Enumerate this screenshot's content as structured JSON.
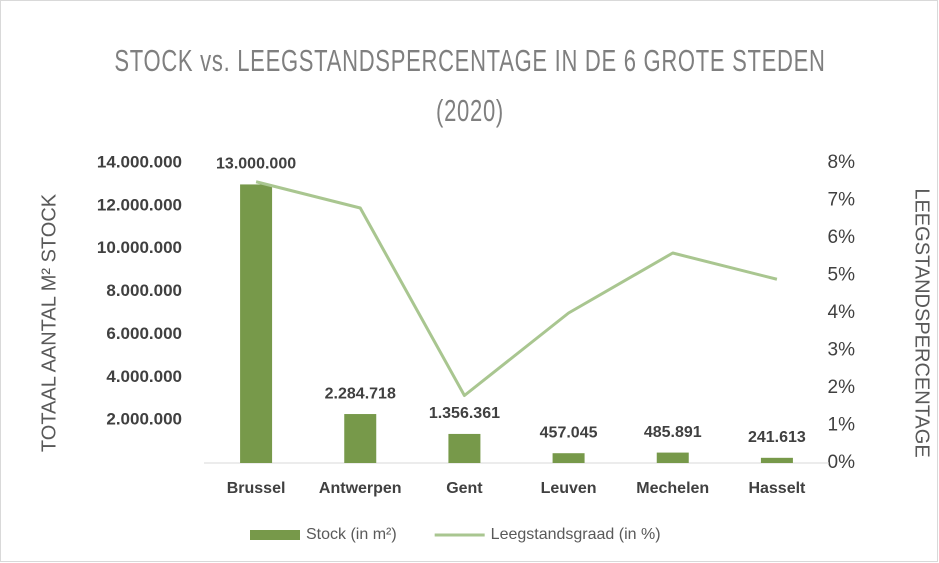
{
  "chart_data": {
    "type": "bar",
    "title": "STOCK vs. LEEGSTANDSPERCENTAGE IN DE 6 GROTE STEDEN (2020)",
    "y_label": "TOTAAL AANTAL M² STOCK",
    "y2_label": "LEEGSTANDSPERCENTAGE",
    "categories": [
      "Brussel",
      "Antwerpen",
      "Gent",
      "Leuven",
      "Mechelen",
      "Hasselt"
    ],
    "series": [
      {
        "name": "Stock (in m²)",
        "color": "#77994a",
        "values": [
          13000000,
          2284718,
          1356361,
          457045,
          485891,
          241613
        ],
        "value_labels": [
          "13.000.000",
          "2.284.718",
          "1.356.361",
          "457.045",
          "485.891",
          "241.613"
        ]
      },
      {
        "name": "Leegstandsgraad (in %)",
        "type": "line",
        "axis": "y2",
        "color": "#a9c690",
        "values": [
          7.5,
          6.8,
          1.8,
          4.0,
          5.6,
          4.9
        ]
      }
    ],
    "ylim": [
      0,
      14000000
    ],
    "yticks": [
      {
        "value": 2000000,
        "label": "2.000.000"
      },
      {
        "value": 4000000,
        "label": "4.000.000"
      },
      {
        "value": 6000000,
        "label": "6.000.000"
      },
      {
        "value": 8000000,
        "label": "8.000.000"
      },
      {
        "value": 10000000,
        "label": "10.000.000"
      },
      {
        "value": 12000000,
        "label": "12.000.000"
      },
      {
        "value": 14000000,
        "label": "14.000.000"
      }
    ],
    "y2lim": [
      0,
      8
    ],
    "y2ticks": [
      {
        "value": 0,
        "label": "0%"
      },
      {
        "value": 1,
        "label": "1%"
      },
      {
        "value": 2,
        "label": "2%"
      },
      {
        "value": 3,
        "label": "3%"
      },
      {
        "value": 4,
        "label": "4%"
      },
      {
        "value": 5,
        "label": "5%"
      },
      {
        "value": 6,
        "label": "6%"
      },
      {
        "value": 7,
        "label": "7%"
      },
      {
        "value": 8,
        "label": "8%"
      }
    ],
    "grid": false,
    "legend": "bottom"
  }
}
